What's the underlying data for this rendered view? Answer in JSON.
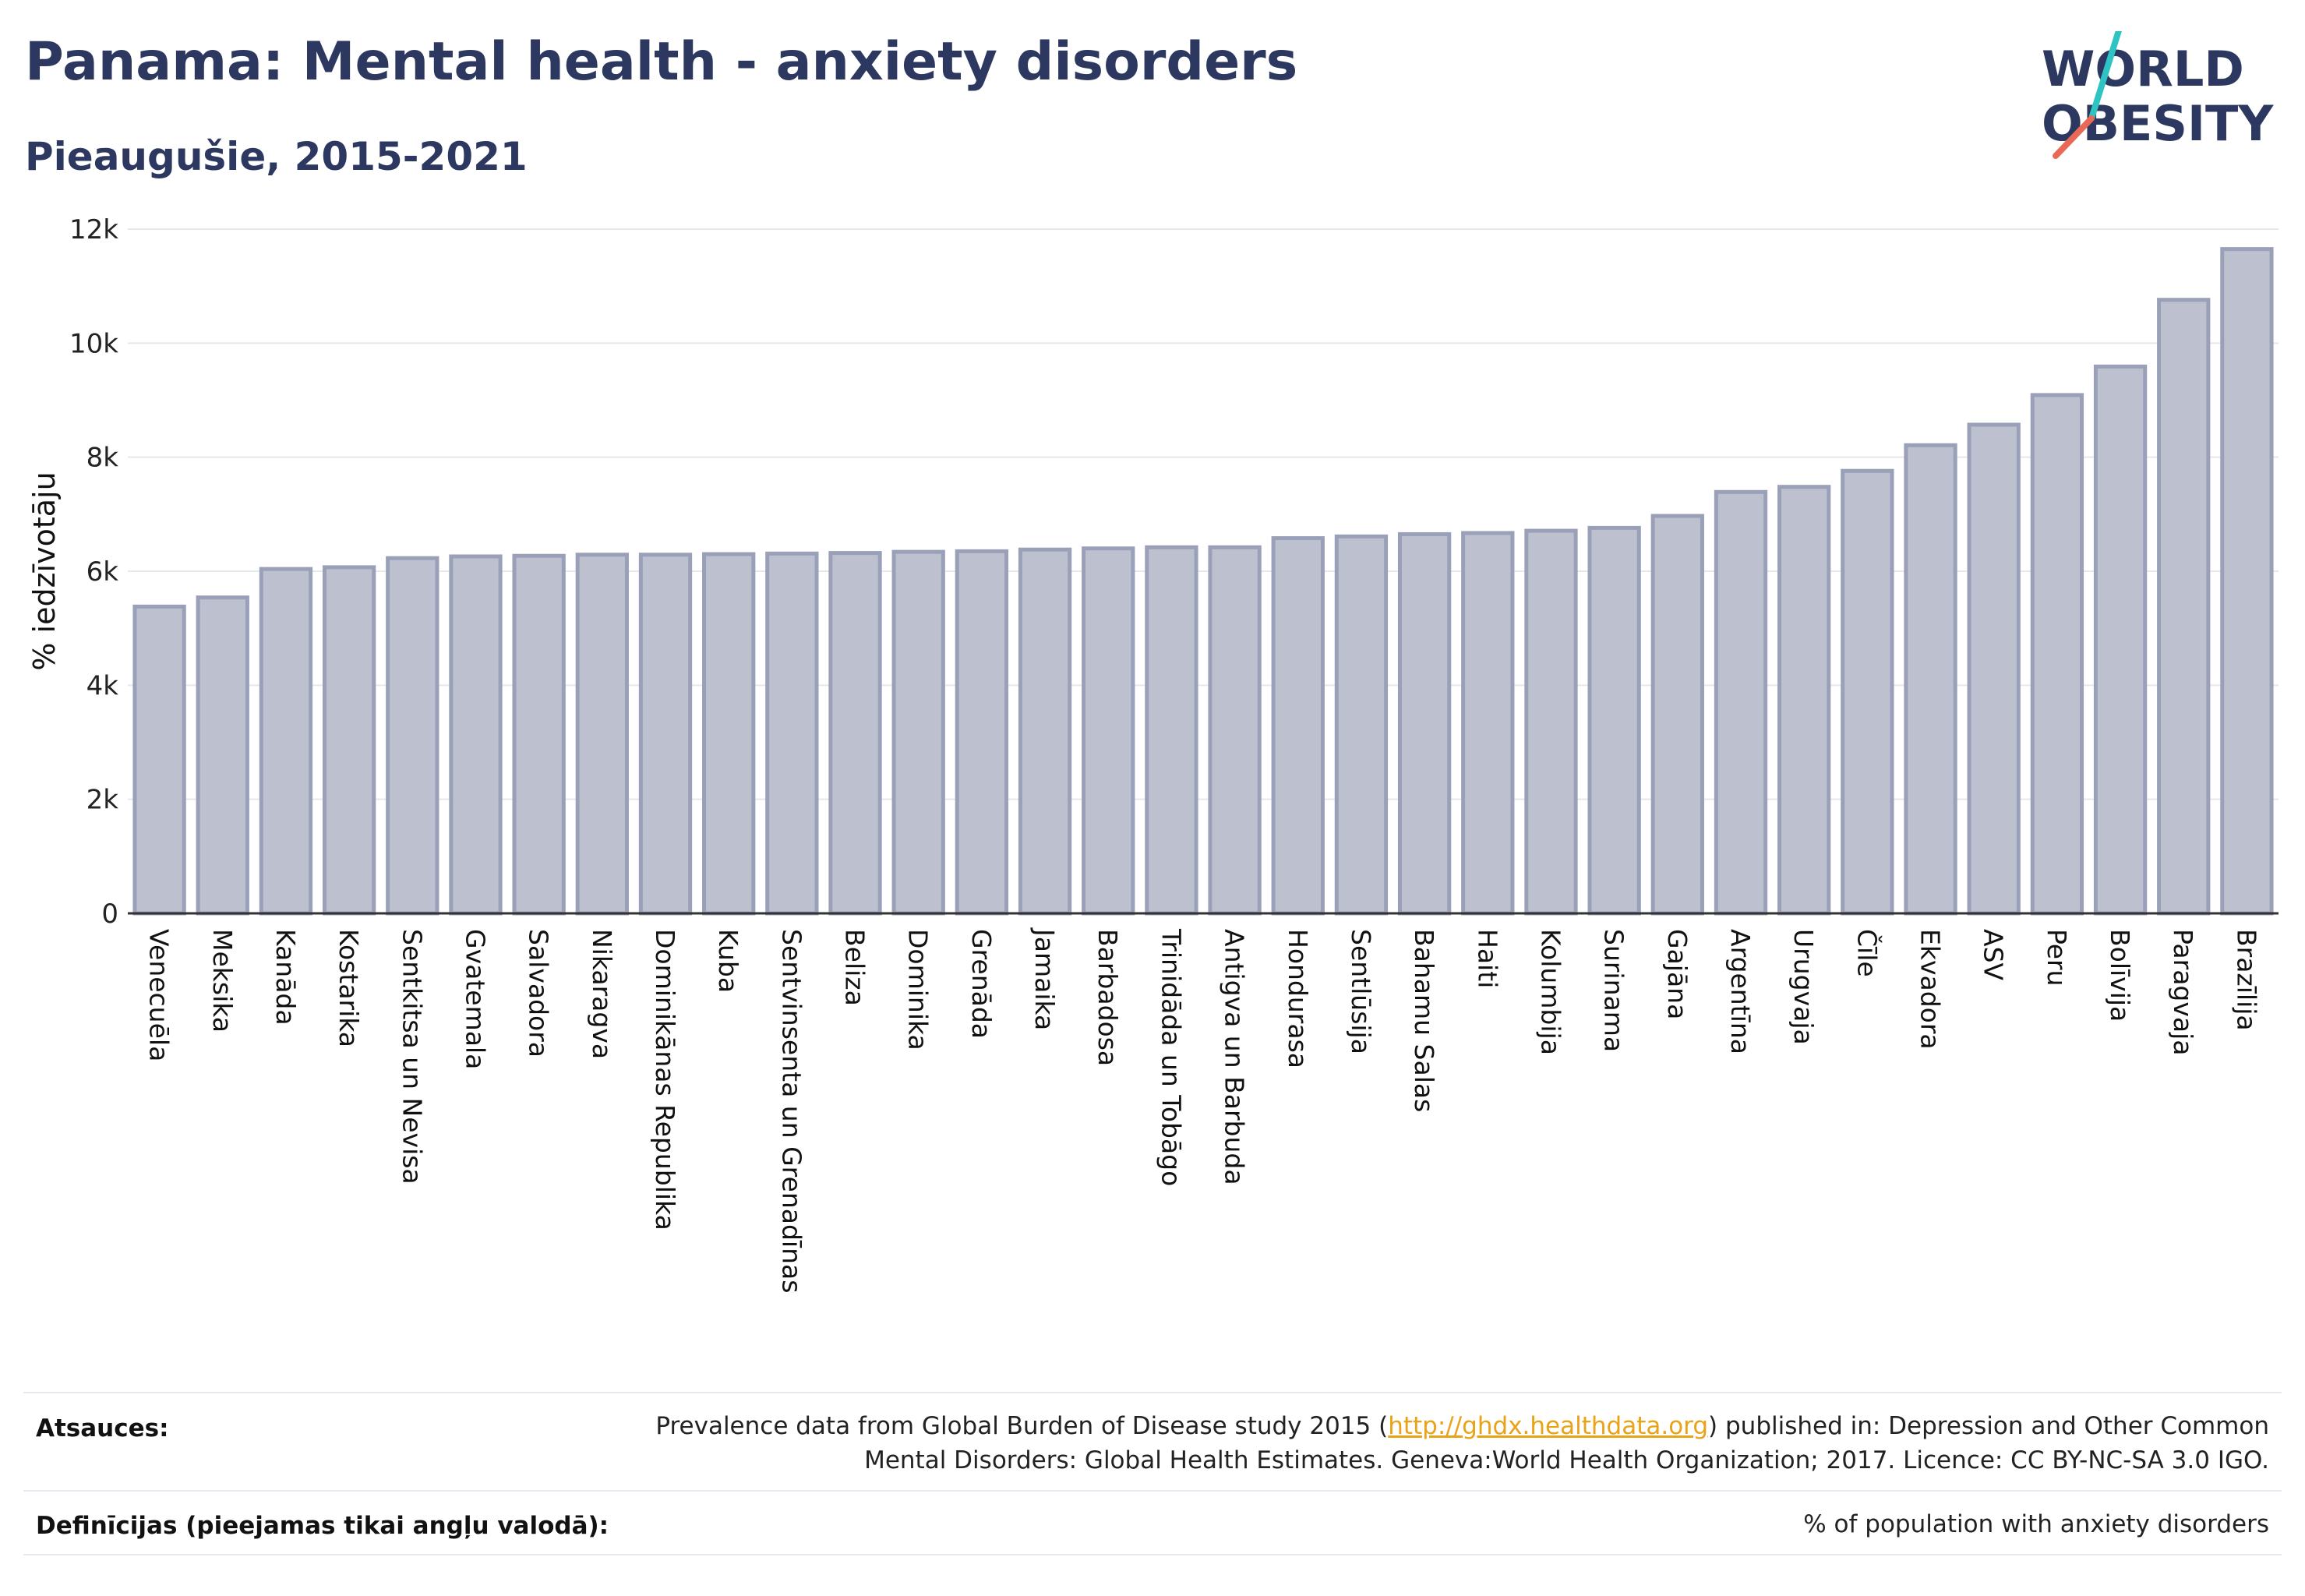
{
  "title": "Panama: Mental health - anxiety disorders",
  "subtitle": "Pieaugušie, 2015-2021",
  "logo": {
    "line1": "WORLD",
    "line2": "OBESITY"
  },
  "colors": {
    "title": "#2d3861",
    "bar_fill": "#bcc0cf",
    "bar_stroke": "#9aa0b8",
    "grid": "#e6e8ee",
    "axis": "#333333",
    "link": "#e8a317",
    "logo_text": "#2d3861",
    "logo_slash_a": "#2ec4c4",
    "logo_slash_b": "#e86a56"
  },
  "footer": {
    "sources_label": "Atsauces:",
    "sources_text_before": "Prevalence data from Global Burden of Disease study 2015 (",
    "sources_link": "http://ghdx.healthdata.org",
    "sources_text_after": ") published in: Depression and Other Common",
    "sources_line2": "Mental Disorders: Global Health Estimates. Geneva:World Health Organization; 2017. Licence: CC BY-NC-SA 3.0 IGO.",
    "definitions_label": "Definīcijas (pieejamas tikai angļu valodā):",
    "definitions_text": "% of population with anxiety disorders"
  },
  "chart_data": {
    "type": "bar",
    "ylabel": "% iedzīvotāju",
    "ylim": [
      0,
      12000
    ],
    "yticks": [
      {
        "value": 0,
        "label": "0"
      },
      {
        "value": 2000,
        "label": "2k"
      },
      {
        "value": 4000,
        "label": "4k"
      },
      {
        "value": 6000,
        "label": "6k"
      },
      {
        "value": 8000,
        "label": "8k"
      },
      {
        "value": 10000,
        "label": "10k"
      },
      {
        "value": 12000,
        "label": "12k"
      }
    ],
    "grid": true,
    "categories": [
      "Venecuēla",
      "Meksika",
      "Kanāda",
      "Kostarika",
      "Sentkitsa un Nevisa",
      "Gvatemala",
      "Salvadora",
      "Nikaragva",
      "Dominikānas Republika",
      "Kuba",
      "Sentvinsenta un Grenadīnas",
      "Beliza",
      "Dominika",
      "Grenāda",
      "Jamaika",
      "Barbadosa",
      "Trinidāda un Tobāgo",
      "Antigva un Barbuda",
      "Hondurasa",
      "Sentlūsija",
      "Bahamu Salas",
      "Haiti",
      "Kolumbija",
      "Surinama",
      "Gajāna",
      "Argentīna",
      "Urugvaja",
      "Čīle",
      "Ekvadora",
      "ASV",
      "Peru",
      "Bolīvija",
      "Paragvaja",
      "Brazīlija"
    ],
    "values": [
      5380,
      5540,
      6040,
      6070,
      6230,
      6260,
      6270,
      6290,
      6290,
      6300,
      6310,
      6320,
      6340,
      6350,
      6380,
      6400,
      6420,
      6420,
      6580,
      6610,
      6650,
      6670,
      6710,
      6760,
      6970,
      7390,
      7480,
      7760,
      8210,
      8570,
      9090,
      9590,
      10760,
      11650
    ]
  }
}
